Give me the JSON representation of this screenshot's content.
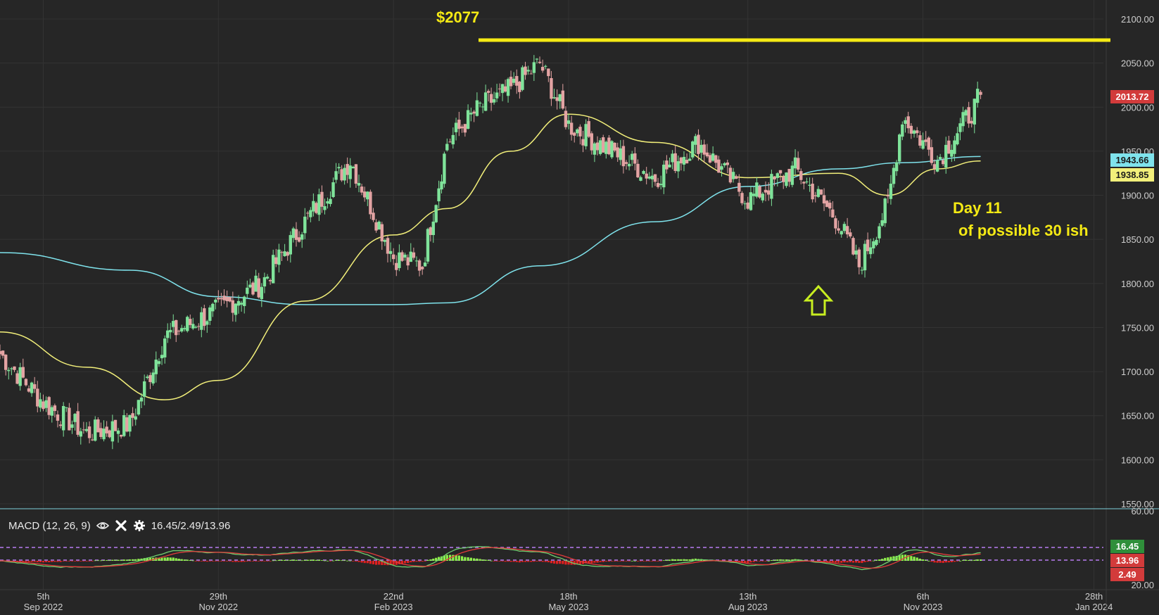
{
  "price_axis": {
    "ticks": [
      "2100.00",
      "2050.00",
      "2000.00",
      "1950.00",
      "1900.00",
      "1850.00",
      "1800.00",
      "1750.00",
      "1700.00",
      "1650.00",
      "1600.00",
      "1550.00"
    ]
  },
  "date_axis": {
    "ticks": [
      {
        "day": "5th",
        "month": "Sep 2022"
      },
      {
        "day": "29th",
        "month": "Nov 2022"
      },
      {
        "day": "22nd",
        "month": "Feb 2023"
      },
      {
        "day": "18th",
        "month": "May 2023"
      },
      {
        "day": "13th",
        "month": "Aug 2023"
      },
      {
        "day": "6th",
        "month": "Nov 2023"
      },
      {
        "day": "28th",
        "month": "Jan 2024"
      }
    ]
  },
  "price_tags": {
    "last": {
      "text": "2013.72",
      "color": "#d23b3b"
    },
    "ma_fast": {
      "text": "1943.66",
      "color": "#7fe3ec"
    },
    "ma_slow": {
      "text": "1938.85",
      "color": "#f2ef7a"
    }
  },
  "annotations": {
    "top_price": "$2077",
    "day_line1": "Day 11",
    "day_line2": "of possible 30 ish"
  },
  "macd": {
    "label": "MACD (12, 26, 9)",
    "values": "16.45/2.49/13.96",
    "axis_ticks": [
      "60.00",
      "20.00"
    ],
    "tags": [
      {
        "text": "16.45",
        "color": "#2f8f3a"
      },
      {
        "text": "13.96",
        "color": "#d23b3b"
      },
      {
        "text": "2.49",
        "color": "#d23b3b"
      }
    ]
  },
  "colors": {
    "background": "#262626",
    "up_candle": "#7fe39a",
    "down_candle": "#e3a3a3",
    "ma_fast": "#7fe3ec",
    "ma_slow": "#f2ef7a",
    "resistance": "#f5ea14",
    "macd_line": "#6fcf6f",
    "signal_line": "#e23b3b"
  },
  "chart_data": {
    "type": "line",
    "title": "",
    "ylim": [
      1550,
      2100
    ],
    "series": [
      {
        "name": "",
        "kind": "price",
        "x": [
          "2022-08-15",
          "2022-09-05",
          "2022-09-26",
          "2022-10-17",
          "2022-11-03",
          "2022-11-29",
          "2022-12-20",
          "2023-01-10",
          "2023-02-01",
          "2023-02-22",
          "2023-03-08",
          "2023-03-20",
          "2023-04-05",
          "2023-04-20",
          "2023-05-04",
          "2023-05-18",
          "2023-06-08",
          "2023-06-29",
          "2023-07-20",
          "2023-08-13",
          "2023-09-05",
          "2023-09-26",
          "2023-10-06",
          "2023-10-20",
          "2023-10-27",
          "2023-11-06",
          "2023-11-13",
          "2023-12-01",
          "2023-12-04"
        ],
        "values": [
          1720,
          1665,
          1630,
          1640,
          1740,
          1770,
          1800,
          1870,
          1940,
          1830,
          1820,
          1960,
          2000,
          2020,
          2050,
          1980,
          1950,
          1920,
          1960,
          1895,
          1930,
          1870,
          1820,
          1890,
          1990,
          1960,
          1940,
          2000,
          2014
        ]
      },
      {
        "name": "",
        "kind": "ma_fast",
        "x": [
          "2022-08-15",
          "2022-10-17",
          "2022-11-29",
          "2023-01-10",
          "2023-02-22",
          "2023-03-20",
          "2023-05-04",
          "2023-06-29",
          "2023-08-13",
          "2023-09-26",
          "2023-10-27",
          "2023-12-04"
        ],
        "values": [
          1835,
          1815,
          1785,
          1776,
          1776,
          1778,
          1820,
          1870,
          1910,
          1930,
          1937,
          1944
        ]
      },
      {
        "name": "",
        "kind": "ma_slow",
        "x": [
          "2022-08-15",
          "2022-09-26",
          "2022-11-03",
          "2022-11-29",
          "2023-01-10",
          "2023-02-22",
          "2023-03-20",
          "2023-04-20",
          "2023-05-18",
          "2023-06-29",
          "2023-08-13",
          "2023-09-26",
          "2023-10-20",
          "2023-11-13",
          "2023-12-04"
        ],
        "values": [
          1745,
          1705,
          1668,
          1690,
          1780,
          1855,
          1885,
          1950,
          1992,
          1960,
          1920,
          1925,
          1900,
          1930,
          1939
        ]
      },
      {
        "name": "",
        "kind": "resistance",
        "x": [
          "2023-04-20",
          "2024-02-05"
        ],
        "values": [
          2077,
          2077
        ]
      }
    ]
  }
}
